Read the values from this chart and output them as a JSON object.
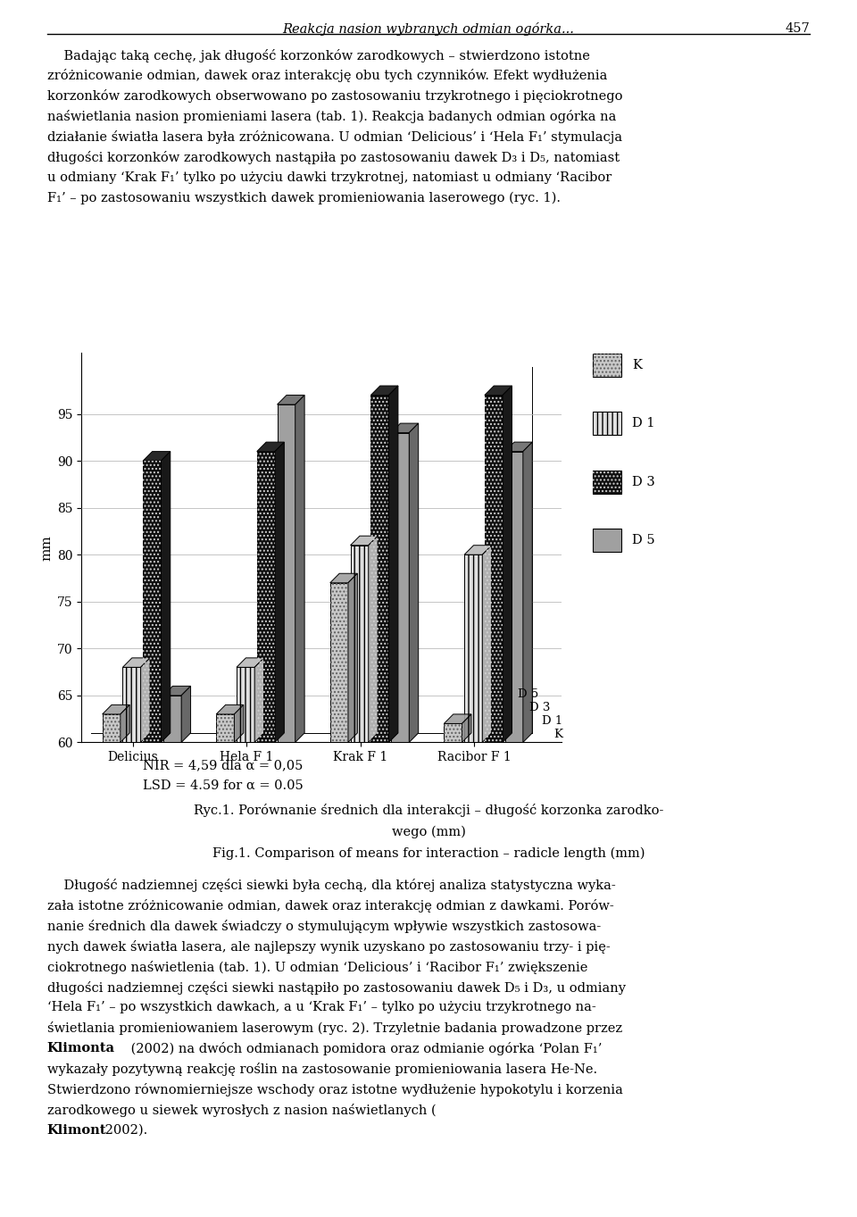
{
  "groups": [
    "Delicius",
    "Hela F 1",
    "Krak F 1",
    "Racibor F 1"
  ],
  "series": [
    "K",
    "D 1",
    "D 3",
    "D 5"
  ],
  "values": {
    "K": [
      63.0,
      63.0,
      77.0,
      62.0
    ],
    "D 1": [
      68.0,
      68.0,
      81.0,
      80.0
    ],
    "D 3": [
      90.0,
      91.0,
      97.0,
      97.0
    ],
    "D 5": [
      65.0,
      96.0,
      93.0,
      91.0
    ]
  },
  "ymin": 60,
  "ymax": 100,
  "yticks": [
    60,
    65,
    70,
    75,
    80,
    85,
    90,
    95
  ],
  "ylabel": "mm",
  "depth_labels": [
    "K",
    "D 1",
    "D 3",
    "D 5"
  ],
  "nir_text": "NIR = 4,59 dla α = 0,05",
  "lsd_text": "LSD = 4.59 for α = 0.05",
  "caption_line1": "Ryc.1. Porównanie średnich dla interakcji – długość korzonka zarodko-",
  "caption_line2": "wego (mm)",
  "caption_line3": "Fig.1. Comparison of means for interaction – radicle length (mm)",
  "page_header": "Reakcja nasion wybranych odmian ogórka...",
  "page_number": "457",
  "para1_lines": [
    "    Badając taką cechę, jak długość korzonków zarodkowych – stwierdzono istotne",
    "zróżnicowanie odmian, dawek oraz interakcję obu tych czynników. Efekt wydłużenia",
    "korzonków zarodkowych obserwowano po zastosowaniu trzykrotnego i pięciokrotnego",
    "naświetlania nasion promieniami lasera (tab. 1). Reakcja badanych odmian ogórka na",
    "działanie światła lasera była zróżnicowana. U odmian ‘Delicious’ i ‘Hela F₁’ stymulacja",
    "długości korzonków zarodkowych nastąpiła po zastosowaniu dawek D₃ i D₅, natomiast",
    "u odmiany ‘Krak F₁’ tylko po użyciu dawki trzykrotnej, natomiast u odmiany ‘Racibor",
    "F₁’ – po zastosowaniu wszystkich dawek promieniowania laserowego (ryc. 1)."
  ],
  "para2_lines": [
    "    Długość nadziemnej części siewki była cechą, dla której analiza statystyczna wyka-",
    "zała istotne zróżnicowanie odmian, dawek oraz interakcję odmian z dawkami. Porów-",
    "nanie średnich dla dawek świadczy o stymulującym wpływie wszystkich zastosowa-",
    "nych dawek światła lasera, ale najlepszy wynik uzyskano po zastosowaniu trzy- i pię-",
    "ciokrotnego naświetlenia (tab. 1). U odmian ‘Delicious’ i ‘Racibor F₁’ zwiększenie",
    "długości nadziemnej części siewki nastąpiło po zastosowaniu dawek D₅ i D₃, u odmiany",
    "‘Hela F₁’ – po wszystkich dawkach, a u ‘Krak F₁’ – tylko po użyciu trzykrotnego na-",
    "świetlania promieniowaniem laserowym (ryc. 2). Trzyletnie badania prowadzone przez"
  ],
  "para2_last_seg1": "Klimonta",
  "para2_last_seg2": " (2002) na dwóch odmianach pomidora oraz odmianie ogórka ‘Polan F₁’",
  "para3_lines": [
    "wykazały pozytywną reakcję roślin na zastosowanie promieniowania lasera He-Ne.",
    "Stwierdzono równomierniejsze wschody oraz istotne wydłużenie hypokotylu i korzenia",
    "zarodkowego u siewek wyrosłych z nasion naświetlanych ("
  ],
  "para3_bold": "Klimont",
  "para3_end": " 2002)."
}
